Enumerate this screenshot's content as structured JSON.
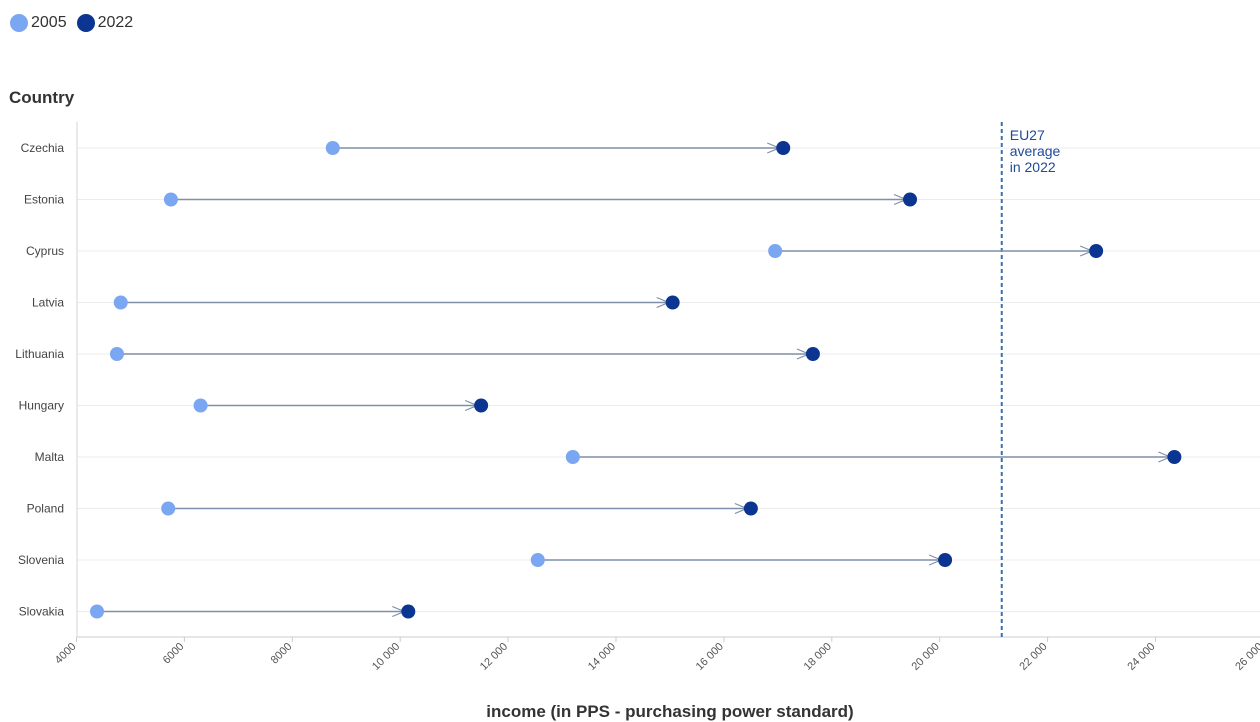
{
  "chart_data": {
    "type": "dumbbell",
    "title": "",
    "xlabel": "income (in PPS - purchasing power standard)",
    "ylabel": "Country",
    "xlim": [
      4000,
      26000
    ],
    "xticks": [
      4000,
      6000,
      8000,
      10000,
      12000,
      14000,
      16000,
      18000,
      20000,
      22000,
      24000,
      26000
    ],
    "xtick_labels": [
      "4000",
      "6000",
      "8000",
      "10 000",
      "12 000",
      "14 000",
      "16 000",
      "18 000",
      "20 000",
      "22 000",
      "24 000",
      "26 000"
    ],
    "categories": [
      "Czechia",
      "Estonia",
      "Cyprus",
      "Latvia",
      "Lithuania",
      "Hungary",
      "Malta",
      "Poland",
      "Slovenia",
      "Slovakia"
    ],
    "series": [
      {
        "name": "2005",
        "color": "#7aa6f2",
        "values": [
          8750,
          5750,
          16950,
          4820,
          4750,
          6300,
          13200,
          5700,
          12550,
          4380
        ]
      },
      {
        "name": "2022",
        "color": "#0b3591",
        "values": [
          17100,
          19450,
          22900,
          15050,
          17650,
          11500,
          24350,
          16500,
          20100,
          10150
        ]
      }
    ],
    "reference_line": {
      "x": 21150,
      "label_lines": [
        "EU27",
        "average",
        "in 2022"
      ],
      "color": "#3a6fb0"
    },
    "grid": true,
    "legend": "top-left"
  }
}
